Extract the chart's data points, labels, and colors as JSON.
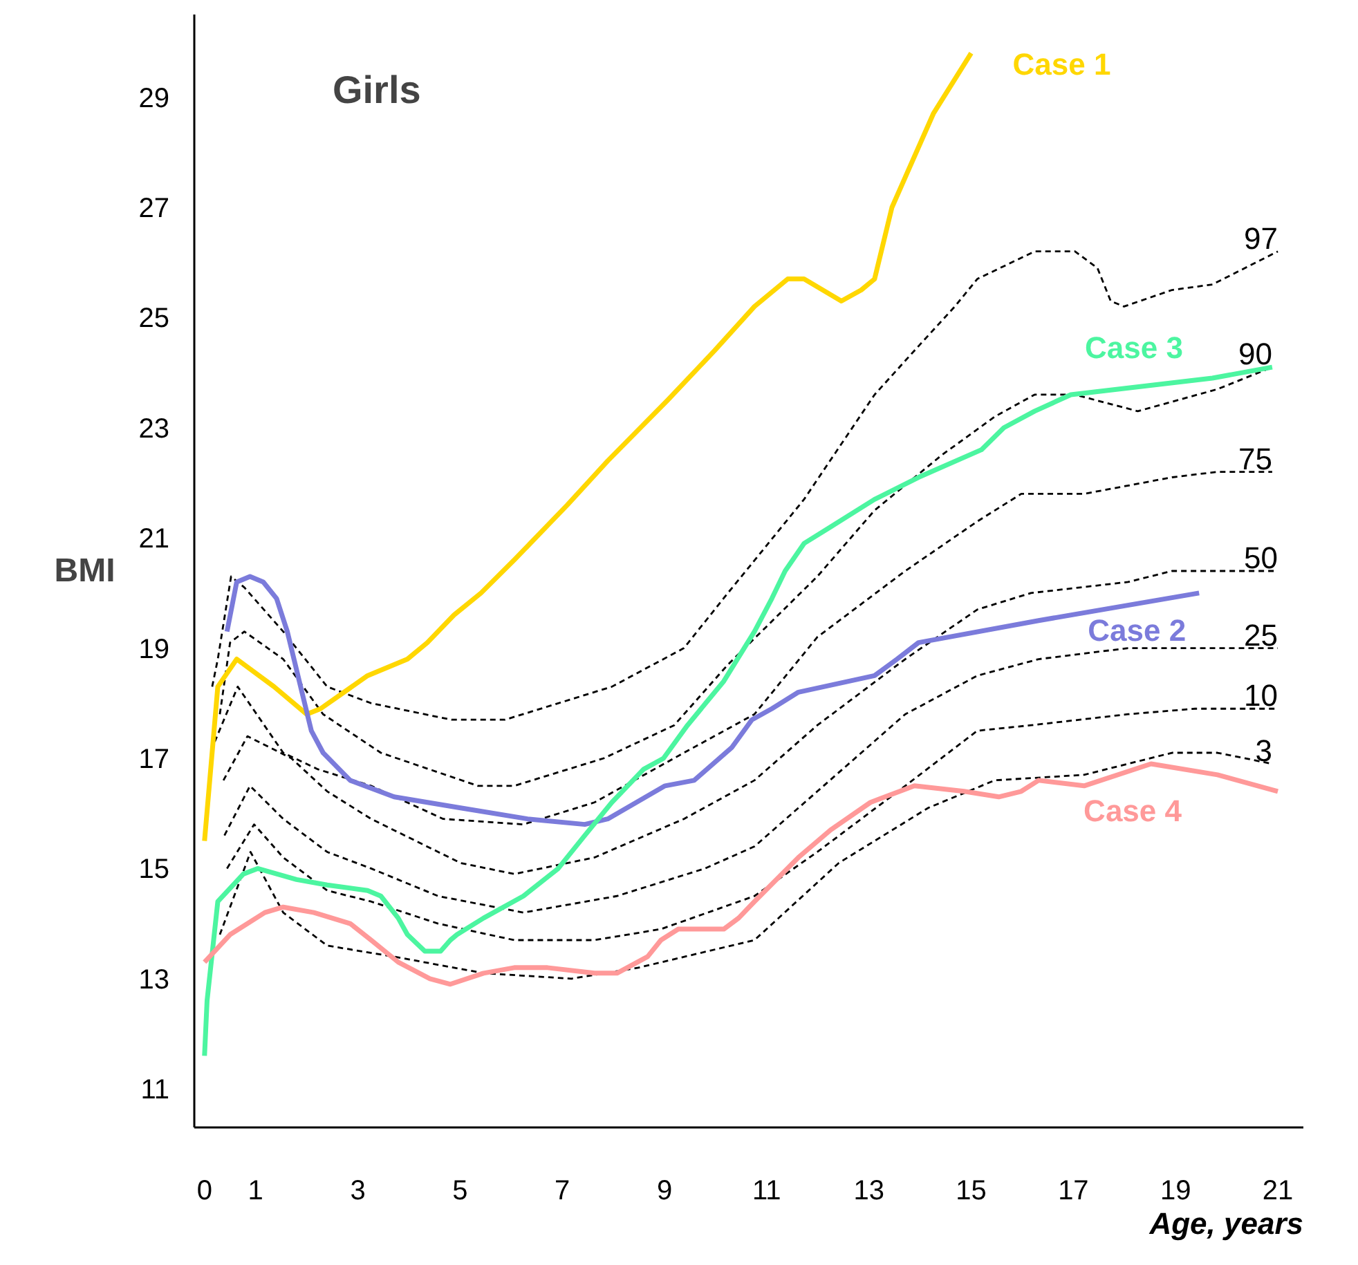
{
  "chart_data": {
    "type": "line",
    "title": "Girls",
    "xlabel": "Age, years",
    "ylabel": "BMI",
    "xlim": [
      -0.2,
      21.5
    ],
    "ylim": [
      10.3,
      30.5
    ],
    "xticks": [
      0,
      1,
      3,
      5,
      7,
      9,
      11,
      13,
      15,
      17,
      19,
      21
    ],
    "yticks": [
      11,
      13,
      15,
      17,
      19,
      21,
      23,
      25,
      27,
      29
    ],
    "grid": false,
    "series": [
      {
        "name": "97",
        "color": "#000000",
        "line_style": "dashed",
        "x": [
          0.15,
          0.26,
          0.52,
          0.78,
          1.54,
          2.4,
          3.26,
          4.83,
          5.88,
          7.97,
          9.38,
          10.24,
          10.68,
          11.73,
          13.11,
          13.89,
          14.68,
          15.12,
          16.24,
          17.03,
          17.47,
          17.73,
          17.99,
          18.93,
          19.72,
          21.0
        ],
        "values": [
          18.3,
          18.8,
          20.3,
          20.1,
          19.3,
          18.3,
          18.0,
          17.7,
          17.7,
          18.3,
          19.0,
          20.0,
          20.5,
          21.7,
          23.6,
          24.4,
          25.2,
          25.7,
          26.2,
          26.2,
          25.9,
          25.3,
          25.2,
          25.5,
          25.6,
          26.2
        ]
      },
      {
        "name": "90",
        "color": "#000000",
        "line_style": "dashed",
        "x": [
          0.3,
          0.5,
          0.78,
          1.54,
          2.32,
          3.45,
          5.35,
          6.06,
          7.81,
          9.19,
          10.24,
          11.99,
          13.11,
          14.42,
          15.46,
          16.24,
          17.03,
          18.26,
          19.82,
          20.89
        ],
        "values": [
          17.8,
          19.1,
          19.3,
          18.8,
          17.8,
          17.1,
          16.5,
          16.5,
          17.0,
          17.6,
          18.7,
          20.3,
          21.5,
          22.5,
          23.2,
          23.6,
          23.6,
          23.3,
          23.7,
          24.1
        ]
      },
      {
        "name": "75",
        "color": "#000000",
        "line_style": "dashed",
        "x": [
          0.2,
          0.65,
          1.54,
          2.22,
          3.26,
          4.67,
          6.24,
          7.63,
          9.38,
          10.76,
          11.99,
          13.71,
          15.12,
          15.98,
          17.21,
          18.93,
          19.82,
          20.89
        ],
        "values": [
          17.3,
          18.3,
          17.1,
          16.8,
          16.5,
          15.9,
          15.8,
          16.2,
          17.1,
          17.8,
          19.2,
          20.4,
          21.3,
          21.8,
          21.8,
          22.1,
          22.2,
          22.2
        ]
      },
      {
        "name": "50",
        "color": "#000000",
        "line_style": "dashed",
        "x": [
          0.37,
          0.84,
          1.7,
          2.4,
          3.26,
          5.01,
          6.06,
          7.63,
          9.38,
          10.76,
          11.99,
          13.71,
          15.12,
          16.17,
          18.07,
          18.93,
          19.82,
          21.0
        ],
        "values": [
          16.6,
          17.4,
          17.0,
          16.4,
          15.9,
          15.1,
          14.9,
          15.2,
          15.9,
          16.6,
          17.6,
          18.8,
          19.7,
          20.0,
          20.2,
          20.4,
          20.4,
          20.4
        ]
      },
      {
        "name": "25",
        "color": "#000000",
        "line_style": "dashed",
        "x": [
          0.39,
          0.89,
          1.54,
          2.4,
          3.26,
          4.57,
          6.24,
          8.07,
          9.79,
          10.76,
          11.99,
          13.71,
          15.12,
          16.32,
          18.07,
          21.0
        ],
        "values": [
          15.6,
          16.5,
          15.9,
          15.3,
          15.0,
          14.5,
          14.2,
          14.5,
          15.0,
          15.4,
          16.4,
          17.8,
          18.5,
          18.8,
          19.0,
          19.0
        ]
      },
      {
        "name": "10",
        "color": "#000000",
        "line_style": "dashed",
        "x": [
          0.44,
          0.97,
          1.54,
          2.4,
          3.26,
          4.57,
          6.06,
          7.63,
          8.93,
          10.76,
          11.99,
          13.71,
          15.12,
          16.17,
          18.07,
          19.38,
          21.0
        ],
        "values": [
          15.0,
          15.8,
          15.2,
          14.6,
          14.4,
          14.0,
          13.7,
          13.7,
          13.9,
          14.5,
          15.3,
          16.5,
          17.5,
          17.6,
          17.8,
          17.9,
          17.9
        ]
      },
      {
        "name": "3",
        "color": "#000000",
        "line_style": "dashed",
        "x": [
          0.3,
          0.9,
          1.54,
          2.4,
          3.71,
          5.46,
          7.18,
          8.49,
          10.76,
          12.41,
          14.16,
          15.46,
          17.21,
          18.93,
          19.82,
          20.89
        ],
        "values": [
          13.8,
          15.3,
          14.2,
          13.6,
          13.4,
          13.1,
          13.0,
          13.2,
          13.7,
          15.1,
          16.1,
          16.6,
          16.7,
          17.1,
          17.1,
          16.9
        ]
      },
      {
        "name": "Case 1",
        "color": "#ffd700",
        "line_style": "solid",
        "x": [
          0,
          0.26,
          0.63,
          1.36,
          2.0,
          2.27,
          3.19,
          3.97,
          4.36,
          4.88,
          5.41,
          6.06,
          7.1,
          7.89,
          9.06,
          9.98,
          10.76,
          11.41,
          11.73,
          12.46,
          12.85,
          13.11,
          13.45,
          14.26,
          15.0
        ],
        "values": [
          15.5,
          18.3,
          18.8,
          18.3,
          17.8,
          17.9,
          18.5,
          18.8,
          19.1,
          19.6,
          20.0,
          20.6,
          21.6,
          22.4,
          23.5,
          24.4,
          25.2,
          25.7,
          25.7,
          25.3,
          25.5,
          25.7,
          27.0,
          28.7,
          29.8
        ]
      },
      {
        "name": "Case 2",
        "color": "#7b7bdb",
        "line_style": "solid",
        "x": [
          0.44,
          0.63,
          0.89,
          1.15,
          1.41,
          1.62,
          1.88,
          2.09,
          2.32,
          2.85,
          3.71,
          5.01,
          6.32,
          7.44,
          7.89,
          9.01,
          9.58,
          10.32,
          10.71,
          11.1,
          11.62,
          13.11,
          13.55,
          13.97,
          16.32,
          19.46
        ],
        "values": [
          19.3,
          20.2,
          20.3,
          20.2,
          19.9,
          19.3,
          18.3,
          17.5,
          17.1,
          16.6,
          16.3,
          16.1,
          15.9,
          15.8,
          15.9,
          16.5,
          16.6,
          17.2,
          17.7,
          17.9,
          18.2,
          18.5,
          18.8,
          19.1,
          19.5,
          20.0
        ]
      },
      {
        "name": "Case 3",
        "color": "#4cf5a0",
        "line_style": "solid",
        "x": [
          0,
          0.05,
          0.26,
          0.76,
          1.04,
          1.8,
          2.4,
          3.19,
          3.45,
          3.79,
          3.97,
          4.31,
          4.62,
          4.81,
          4.94,
          5.46,
          6.24,
          6.92,
          7.44,
          7.97,
          8.59,
          8.98,
          9.45,
          10.16,
          10.76,
          11.1,
          11.36,
          11.73,
          12.25,
          13.11,
          13.97,
          15.2,
          15.64,
          16.24,
          16.95,
          19.72,
          20.89
        ],
        "values": [
          11.6,
          12.6,
          14.4,
          14.9,
          15.0,
          14.8,
          14.7,
          14.6,
          14.5,
          14.1,
          13.8,
          13.5,
          13.5,
          13.7,
          13.8,
          14.1,
          14.5,
          15.0,
          15.6,
          16.2,
          16.8,
          17.0,
          17.6,
          18.4,
          19.3,
          19.9,
          20.4,
          20.9,
          21.2,
          21.7,
          22.1,
          22.6,
          23.0,
          23.3,
          23.6,
          23.9,
          24.1
        ]
      },
      {
        "name": "Case 4",
        "color": "#ff9999",
        "line_style": "solid",
        "x": [
          0,
          0.5,
          1.18,
          1.54,
          2.14,
          2.85,
          3.26,
          3.79,
          4.41,
          4.81,
          5.46,
          6.06,
          6.71,
          7.63,
          8.07,
          8.67,
          8.93,
          9.27,
          10.16,
          10.45,
          10.76,
          11.62,
          12.25,
          13.03,
          13.89,
          14.86,
          15.54,
          15.98,
          16.32,
          17.21,
          18.52,
          19.82,
          21.0
        ],
        "values": [
          13.3,
          13.8,
          14.2,
          14.3,
          14.2,
          14.0,
          13.7,
          13.3,
          13.0,
          12.9,
          13.1,
          13.2,
          13.2,
          13.1,
          13.1,
          13.4,
          13.7,
          13.9,
          13.9,
          14.1,
          14.4,
          15.2,
          15.7,
          16.2,
          16.5,
          16.4,
          16.3,
          16.4,
          16.6,
          16.5,
          16.9,
          16.7,
          16.4
        ]
      }
    ]
  }
}
